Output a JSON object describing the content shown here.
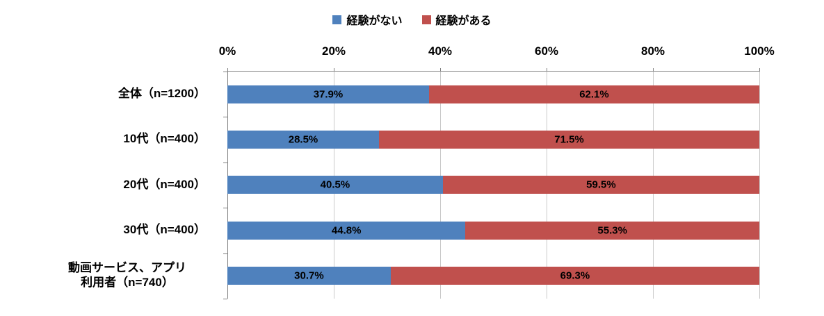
{
  "chart_data": {
    "type": "bar",
    "orientation": "horizontal",
    "stacked": true,
    "title": "",
    "xlabel": "",
    "ylabel": "",
    "xlim": [
      0,
      100
    ],
    "x_ticks": [
      "0%",
      "20%",
      "40%",
      "60%",
      "80%",
      "100%"
    ],
    "grid": true,
    "legend_position": "top",
    "categories": [
      "全体（n=1200）",
      "10代（n=400）",
      "20代（n=400）",
      "30代（n=400）",
      "動画サービス、アプリ\n利用者（n=740）"
    ],
    "series": [
      {
        "name": "経験がない",
        "color": "#4F81BD",
        "values": [
          37.9,
          28.5,
          40.5,
          44.8,
          30.7
        ]
      },
      {
        "name": "経験がある",
        "color": "#C0504D",
        "values": [
          62.1,
          71.5,
          59.5,
          55.3,
          69.3
        ]
      }
    ],
    "value_suffix": "%"
  },
  "colors": {
    "gridline": "#c9c9c9",
    "axis_line": "#808080",
    "background": "#ffffff",
    "label_text": "#000000"
  }
}
